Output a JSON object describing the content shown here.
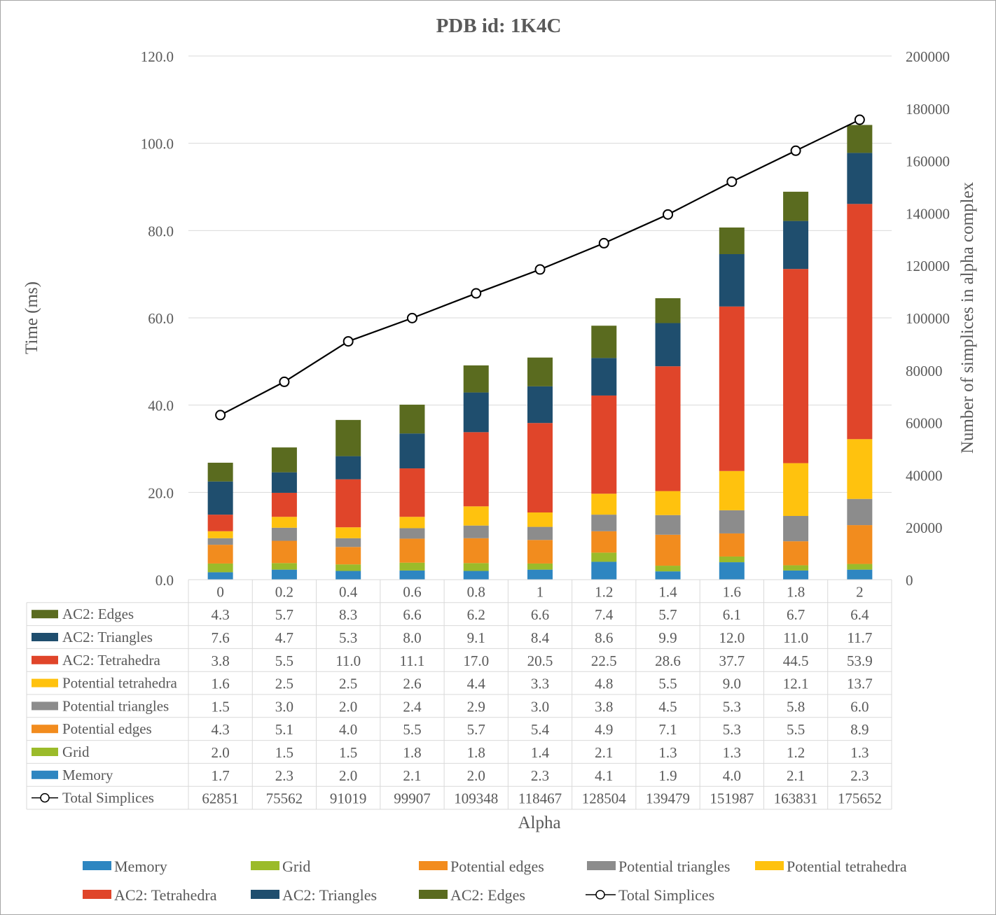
{
  "chart_data": {
    "type": "bar",
    "stacked": true,
    "title": "PDB id: 1K4C",
    "xlabel": "Alpha",
    "ylabel": "Time (ms)",
    "y2label": "Number of  simplices in alpha complex",
    "categories": [
      "0",
      "0.2",
      "0.4",
      "0.6",
      "0.8",
      "1",
      "1.2",
      "1.4",
      "1.6",
      "1.8",
      "2"
    ],
    "ylim": [
      0,
      120
    ],
    "y2lim": [
      0,
      200000
    ],
    "yticks": [
      "0.0",
      "20.0",
      "40.0",
      "60.0",
      "80.0",
      "100.0",
      "120.0"
    ],
    "y2ticks": [
      "0",
      "20000",
      "40000",
      "60000",
      "80000",
      "100000",
      "120000",
      "140000",
      "160000",
      "180000",
      "200000"
    ],
    "grid": true,
    "legend_position": "bottom",
    "series": [
      {
        "name": "Memory",
        "color": "#2E86C1",
        "values": [
          1.7,
          2.3,
          2.0,
          2.1,
          2.0,
          2.3,
          4.1,
          1.9,
          4.0,
          2.1,
          2.3
        ]
      },
      {
        "name": "Grid",
        "color": "#9BBB2A",
        "values": [
          2.0,
          1.5,
          1.5,
          1.8,
          1.8,
          1.4,
          2.1,
          1.3,
          1.3,
          1.2,
          1.3
        ]
      },
      {
        "name": "Potential edges",
        "color": "#F28C1E",
        "values": [
          4.3,
          5.1,
          4.0,
          5.5,
          5.7,
          5.4,
          4.9,
          7.1,
          5.3,
          5.5,
          8.9
        ]
      },
      {
        "name": "Potential triangles",
        "color": "#8C8C8C",
        "values": [
          1.5,
          3.0,
          2.0,
          2.4,
          2.9,
          3.0,
          3.8,
          4.5,
          5.3,
          5.8,
          6.0
        ]
      },
      {
        "name": "Potential tetrahedra",
        "color": "#FFC20E",
        "values": [
          1.6,
          2.5,
          2.5,
          2.6,
          4.4,
          3.3,
          4.8,
          5.5,
          9.0,
          12.1,
          13.7
        ]
      },
      {
        "name": "AC2: Tetrahedra",
        "color": "#E0452A",
        "values": [
          3.8,
          5.5,
          11.0,
          11.1,
          17.0,
          20.5,
          22.5,
          28.6,
          37.7,
          44.5,
          53.9
        ]
      },
      {
        "name": "AC2: Triangles",
        "color": "#1F4E6E",
        "values": [
          7.6,
          4.7,
          5.3,
          8.0,
          9.1,
          8.4,
          8.6,
          9.9,
          12.0,
          11.0,
          11.7
        ]
      },
      {
        "name": "AC2: Edges",
        "color": "#5A6B1F",
        "values": [
          4.3,
          5.7,
          8.3,
          6.6,
          6.2,
          6.6,
          7.4,
          5.7,
          6.1,
          6.7,
          6.4
        ]
      }
    ],
    "table_values": {
      "Memory": [
        "1.7",
        "2.3",
        "2.0",
        "2.1",
        "2.0",
        "2.3",
        "4.1",
        "1.9",
        "4.0",
        "2.1",
        "2.3"
      ],
      "Grid": [
        "2.0",
        "1.5",
        "1.5",
        "1.8",
        "1.8",
        "1.4",
        "2.1",
        "1.3",
        "1.3",
        "1.2",
        "1.3"
      ],
      "Potential edges": [
        "4.3",
        "5.1",
        "4.0",
        "5.5",
        "5.7",
        "5.4",
        "4.9",
        "7.1",
        "5.3",
        "5.5",
        "8.9"
      ],
      "Potential triangles": [
        "1.5",
        "3.0",
        "2.0",
        "2.4",
        "2.9",
        "3.0",
        "3.8",
        "4.5",
        "5.3",
        "5.8",
        "6.0"
      ],
      "Potential tetrahedra": [
        "1.6",
        "2.5",
        "2.5",
        "2.6",
        "4.4",
        "3.3",
        "4.8",
        "5.5",
        "9.0",
        "12.1",
        "13.7"
      ],
      "AC2: Tetrahedra": [
        "3.8",
        "5.5",
        "11.0",
        "11.1",
        "17.0",
        "20.5",
        "22.5",
        "28.6",
        "37.7",
        "44.5",
        "53.9"
      ],
      "AC2: Triangles": [
        "7.6",
        "4.7",
        "5.3",
        "8.0",
        "9.1",
        "8.4",
        "8.6",
        "9.9",
        "12.0",
        "11.0",
        "11.7"
      ],
      "AC2: Edges": [
        "4.3",
        "5.7",
        "8.3",
        "6.6",
        "6.2",
        "6.6",
        "7.4",
        "5.7",
        "6.1",
        "6.7",
        "6.4"
      ]
    },
    "line_series": {
      "name": "Total Simplices",
      "axis": "secondary",
      "values": [
        62851,
        75562,
        91019,
        99907,
        109348,
        118467,
        128504,
        139479,
        151987,
        163831,
        175652
      ]
    }
  }
}
